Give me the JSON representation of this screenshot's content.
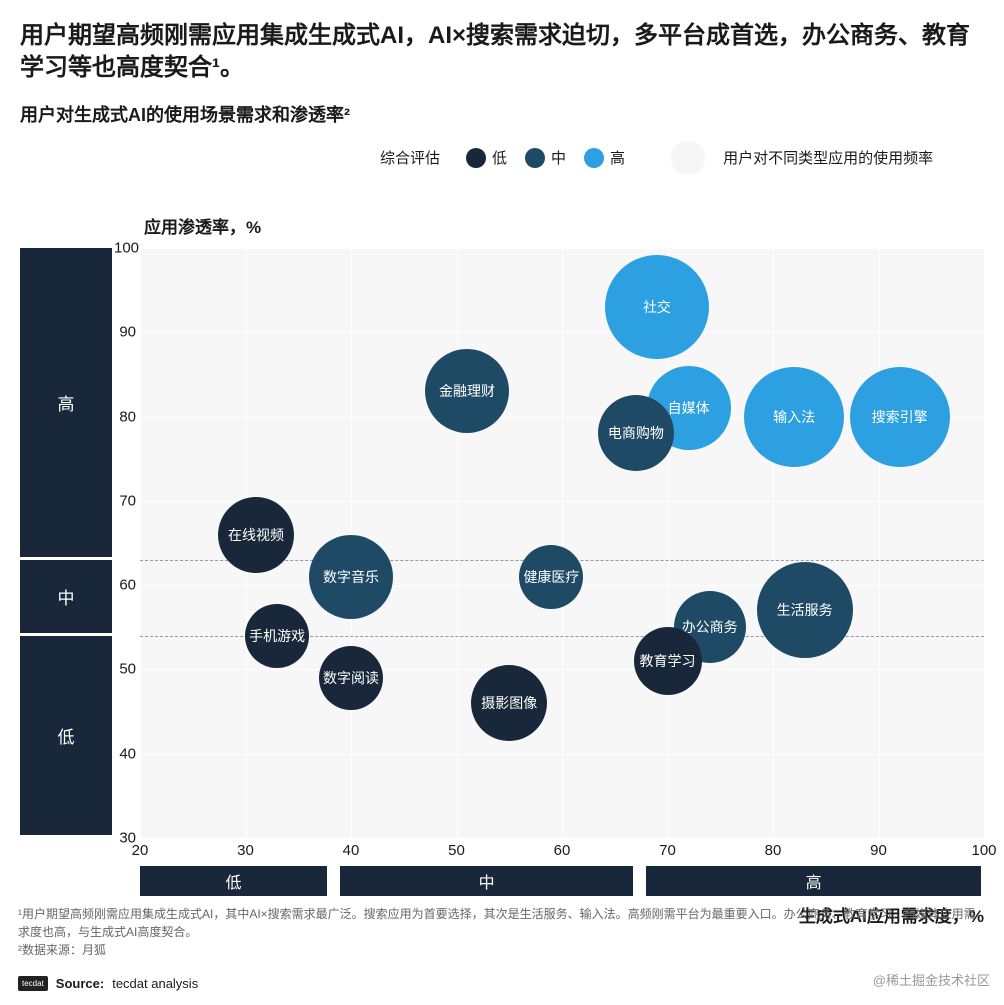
{
  "title": "用户期望高频刚需应用集成生成式AI，AI×搜索需求迫切，多平台成首选，办公商务、教育学习等也高度契合¹。",
  "subtitle": "用户对生成式AI的使用场景需求和渗透率²",
  "legend": {
    "title": "综合评估",
    "levels": [
      {
        "label": "低",
        "color": "#18283a"
      },
      {
        "label": "中",
        "color": "#1e4a66"
      },
      {
        "label": "高",
        "color": "#2ca0e0"
      }
    ],
    "bubble_note": "用户对不同类型应用的使用频率",
    "bubble_outline_color": "#f2f2f2"
  },
  "chart": {
    "type": "bubble",
    "background": "#f7f7f7",
    "grid_color": "#ffffff",
    "text_color": "#ffffff",
    "ylabel": "应用渗透率，%",
    "xlabel": "生成式AI应用需求度，%",
    "xlim": [
      20,
      100
    ],
    "ylim": [
      30,
      100
    ],
    "xticks": [
      20,
      30,
      40,
      50,
      60,
      70,
      80,
      90,
      100
    ],
    "yticks": [
      30,
      40,
      50,
      60,
      70,
      80,
      90,
      100
    ],
    "y_bands": [
      {
        "label": "高",
        "from": 63,
        "to": 100
      },
      {
        "label": "中",
        "from": 54,
        "to": 63
      },
      {
        "label": "低",
        "from": 30,
        "to": 54
      }
    ],
    "x_bands": [
      {
        "label": "低",
        "from": 20,
        "to": 38
      },
      {
        "label": "中",
        "from": 39,
        "to": 67
      },
      {
        "label": "高",
        "from": 68,
        "to": 100
      }
    ],
    "y_band_dividers": [
      54,
      63
    ],
    "bubbles": [
      {
        "label": "社交",
        "x": 69,
        "y": 93,
        "r": 52,
        "color": "#2ca0e0"
      },
      {
        "label": "金融理财",
        "x": 51,
        "y": 83,
        "r": 42,
        "color": "#1e4a66"
      },
      {
        "label": "自媒体",
        "x": 72,
        "y": 81,
        "r": 42,
        "color": "#2ca0e0"
      },
      {
        "label": "输入法",
        "x": 82,
        "y": 80,
        "r": 50,
        "color": "#2ca0e0"
      },
      {
        "label": "搜索引擎",
        "x": 92,
        "y": 80,
        "r": 50,
        "color": "#2ca0e0"
      },
      {
        "label": "电商购物",
        "x": 67,
        "y": 78,
        "r": 38,
        "color": "#1e4a66"
      },
      {
        "label": "在线视频",
        "x": 31,
        "y": 66,
        "r": 38,
        "color": "#18283a"
      },
      {
        "label": "数字音乐",
        "x": 40,
        "y": 61,
        "r": 42,
        "color": "#1e4a66"
      },
      {
        "label": "健康医疗",
        "x": 59,
        "y": 61,
        "r": 32,
        "color": "#1e4a66"
      },
      {
        "label": "生活服务",
        "x": 83,
        "y": 57,
        "r": 48,
        "color": "#1e4a66"
      },
      {
        "label": "办公商务",
        "x": 74,
        "y": 55,
        "r": 36,
        "color": "#1e4a66"
      },
      {
        "label": "手机游戏",
        "x": 33,
        "y": 54,
        "r": 32,
        "color": "#18283a"
      },
      {
        "label": "教育学习",
        "x": 70,
        "y": 51,
        "r": 34,
        "color": "#18283a"
      },
      {
        "label": "数字阅读",
        "x": 40,
        "y": 49,
        "r": 32,
        "color": "#18283a"
      },
      {
        "label": "摄影图像",
        "x": 55,
        "y": 46,
        "r": 38,
        "color": "#18283a"
      }
    ]
  },
  "footnotes": {
    "note1": "¹用户期望高频刚需应用集成生成式AI，其中AI×搜索需求最广泛。搜索应用为首要选择，其次是生活服务、输入法。高频刚需平台为最重要入口。办公商务、教育学习、自媒体应用需求度也高，与生成式AI高度契合。",
    "note2": "²数据来源：月狐"
  },
  "source": {
    "logo": "tecdat",
    "label": "Source:",
    "value": "tecdat analysis"
  },
  "watermark": "@稀土掘金技术社区"
}
